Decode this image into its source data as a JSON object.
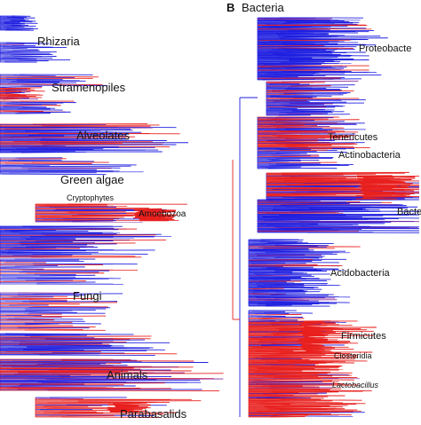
{
  "panel_b": {
    "letter": "B",
    "title": "Bacteria"
  },
  "left_labels": {
    "rhizaria": "Rhizaria",
    "stramenopiles": "Stramenopiles",
    "alveolates": "Alveolates",
    "green_algae": "Green algae",
    "cryptophytes": "Cryptophytes",
    "amoebozoa": "Amoebozoa",
    "fungi": "Fungi",
    "animals": "Animals",
    "parabasalids": "Parabasalids"
  },
  "right_labels": {
    "proteobacteria": "Proteobacte",
    "tenericutes": "Tenericutes",
    "actinobacteria": "Actinobacteria",
    "bacteroidetes": "Bacte",
    "acidobacteria": "Acidobacteria",
    "firmicutes": "Firmicutes",
    "clostridia": "Closteridia",
    "lactobacillus": "Lactobacillus"
  },
  "colors": {
    "blue": "#1f1fe0",
    "red": "#e8201e",
    "purple": "#8a2a9e",
    "black": "#111111"
  }
}
